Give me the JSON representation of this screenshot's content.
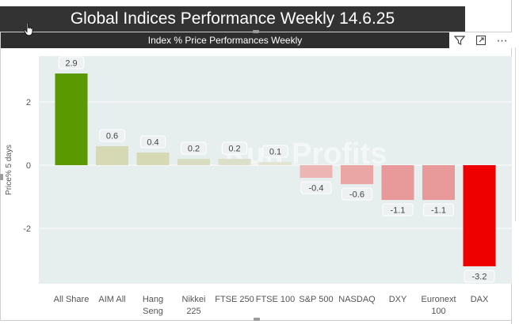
{
  "page_title": "Global Indices Performance Weekly 14.6.25",
  "visual": {
    "title": "Index % Price Performances Weekly",
    "toolbar": {
      "filter_icon": "filter-icon",
      "focus_icon": "focus-mode-icon",
      "more_icon": "more-options-icon",
      "more_label": "⋯"
    }
  },
  "watermark": {
    "text": "Run Profits"
  },
  "colors": {
    "positive_strong": "#5a9a00",
    "positive_muted": "#d5dab5",
    "negative_muted": "#eaa0a0",
    "negative_strong": "#ee0000",
    "plot_bg": "#e6eeee"
  },
  "chart_data": {
    "type": "bar",
    "categories": [
      "All Share",
      "AIM All",
      "Hang Seng",
      "Nikkei 225",
      "FTSE 250",
      "FTSE 100",
      "S&P 500",
      "NASDAQ",
      "DXY",
      "Euronext 100",
      "DAX"
    ],
    "category_lines": [
      [
        "All Share"
      ],
      [
        "AIM All"
      ],
      [
        "Hang",
        "Seng"
      ],
      [
        "Nikkei",
        "225"
      ],
      [
        "FTSE 250"
      ],
      [
        "FTSE 100"
      ],
      [
        "S&P 500"
      ],
      [
        "NASDAQ"
      ],
      [
        "DXY"
      ],
      [
        "Euronext",
        "100"
      ],
      [
        "DAX"
      ]
    ],
    "values": [
      2.9,
      0.6,
      0.4,
      0.2,
      0.2,
      0.1,
      -0.4,
      -0.6,
      -1.1,
      -1.1,
      -3.2
    ],
    "data_labels": [
      "2.9",
      "0.6",
      "0.4",
      "0.2",
      "0.2",
      "0.1",
      "-0.4",
      "-0.6",
      "-1.1",
      "-1.1",
      "-3.2"
    ],
    "bar_colors": [
      "#5a9a00",
      "#d5dab5",
      "#d5dab5",
      "#d8dcc0",
      "#dde0c8",
      "#e2e4d2",
      "#eeb5b5",
      "#eaa5a5",
      "#e89a9a",
      "#e89a9a",
      "#ee0000"
    ],
    "title": "",
    "xlabel": "",
    "ylabel": "Price% 5 days",
    "yticks": [
      2,
      0,
      -2
    ],
    "ytick_labels": [
      "2",
      "0",
      "-2"
    ],
    "ylim": [
      -3.75,
      3.45
    ],
    "grid": true,
    "legend": "none"
  }
}
